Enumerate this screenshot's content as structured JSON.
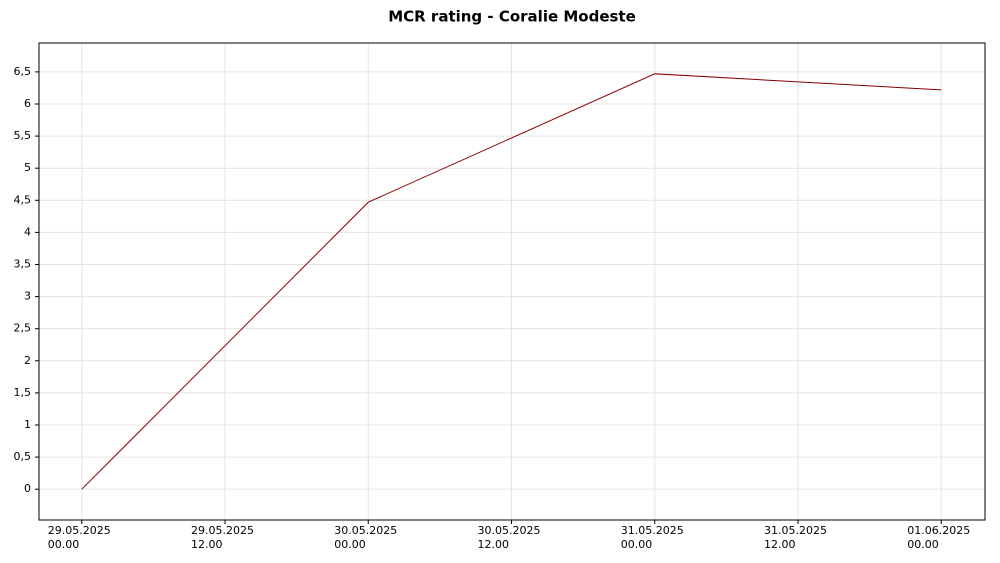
{
  "chart_data": {
    "type": "line",
    "title": "MCR rating - Coralie Modeste",
    "x": [
      "29.05.2025 00.00",
      "30.05.2025 00.00",
      "31.05.2025 00.00",
      "01.06.2025 00.00"
    ],
    "series": [
      {
        "name": "MCR rating",
        "color": "#8b0000",
        "values": [
          0,
          4.47,
          6.47,
          6.22
        ]
      }
    ],
    "xlim": [
      "28.05.2025 20.25",
      "01.06.2025 03.40"
    ],
    "xticks": [
      {
        "value": "29.05.2025 00.00",
        "label": [
          "29.05.2025",
          "00.00"
        ]
      },
      {
        "value": "29.05.2025 12.00",
        "label": [
          "29.05.2025",
          "12.00"
        ]
      },
      {
        "value": "30.05.2025 00.00",
        "label": [
          "30.05.2025",
          "00.00"
        ]
      },
      {
        "value": "30.05.2025 12.00",
        "label": [
          "30.05.2025",
          "12.00"
        ]
      },
      {
        "value": "31.05.2025 00.00",
        "label": [
          "31.05.2025",
          "00.00"
        ]
      },
      {
        "value": "31.05.2025 12.00",
        "label": [
          "31.05.2025",
          "12.00"
        ]
      },
      {
        "value": "01.06.2025 00.00",
        "label": [
          "01.06.2025",
          "00.00"
        ]
      }
    ],
    "ylim": [
      -0.48,
      6.95
    ],
    "yticks": [
      0,
      {
        "value": 0.5,
        "label": "0,5"
      },
      1,
      {
        "value": 1.5,
        "label": "1,5"
      },
      2,
      {
        "value": 2.5,
        "label": "2,5"
      },
      3,
      {
        "value": 3.5,
        "label": "3,5"
      },
      4,
      {
        "value": 4.5,
        "label": "4,5"
      },
      5,
      {
        "value": 5.5,
        "label": "5,5"
      },
      6,
      {
        "value": 6.5,
        "label": "6,5"
      }
    ],
    "grid": true
  }
}
